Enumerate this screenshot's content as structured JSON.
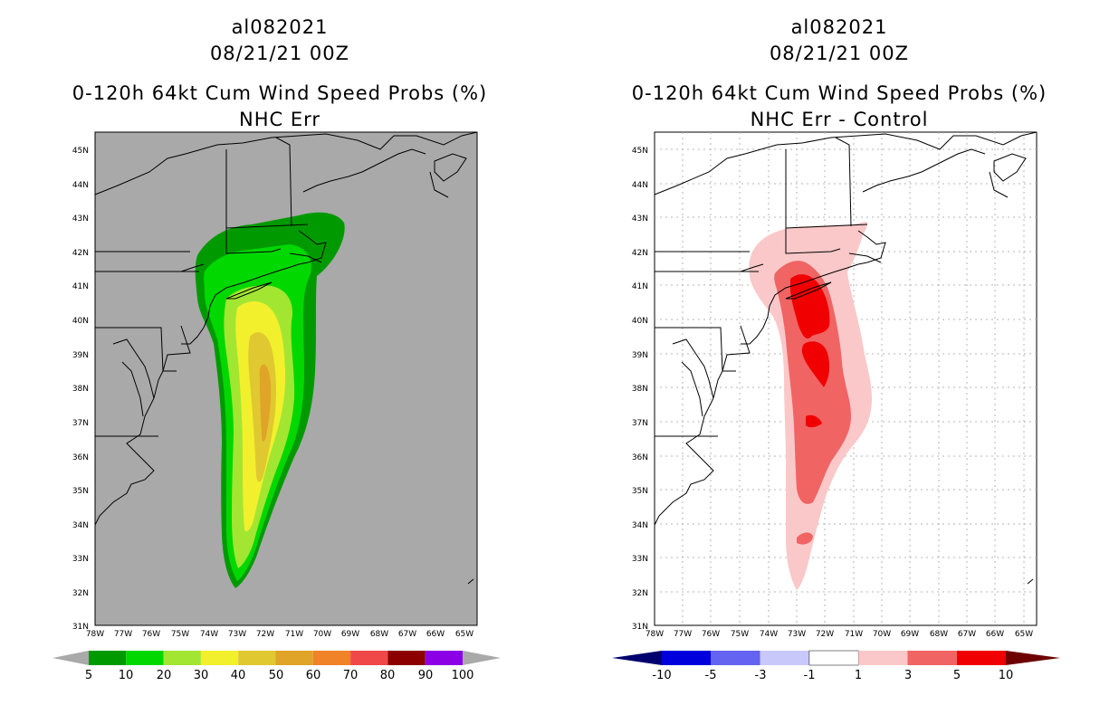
{
  "panels": [
    {
      "storm_id": "al082021",
      "datetime": "08/21/21 00Z",
      "product": "0-120h 64kt Cum Wind Speed Probs (%)",
      "subtitle": "NHC Err",
      "lat_labels": [
        "45N",
        "44N",
        "43N",
        "42N",
        "41N",
        "40N",
        "39N",
        "38N",
        "37N",
        "36N",
        "35N",
        "34N",
        "33N",
        "32N",
        "31N"
      ],
      "lon_labels": [
        "78W",
        "77W",
        "76W",
        "75W",
        "74W",
        "73W",
        "72W",
        "71W",
        "70W",
        "69W",
        "68W",
        "67W",
        "66W",
        "65W"
      ],
      "colorbar_labels": [
        "5",
        "10",
        "20",
        "30",
        "40",
        "50",
        "60",
        "70",
        "80",
        "90",
        "100"
      ],
      "colorbar_colors": [
        "#009a00",
        "#00d800",
        "#a2e632",
        "#f2f02c",
        "#e0c830",
        "#e0a428",
        "#f08228",
        "#f04848",
        "#8c0000",
        "#8c00e6"
      ],
      "background": "#a9a9a9"
    },
    {
      "storm_id": "al082021",
      "datetime": "08/21/21 00Z",
      "product": "0-120h 64kt Cum Wind Speed Probs (%)",
      "subtitle": "NHC Err - Control",
      "lat_labels": [
        "45N",
        "44N",
        "43N",
        "42N",
        "41N",
        "40N",
        "39N",
        "38N",
        "37N",
        "36N",
        "35N",
        "34N",
        "33N",
        "32N",
        "31N"
      ],
      "lon_labels": [
        "78W",
        "77W",
        "76W",
        "75W",
        "74W",
        "73W",
        "72W",
        "71W",
        "70W",
        "69W",
        "68W",
        "67W",
        "66W",
        "65W"
      ],
      "colorbar_labels": [
        "-10",
        "-5",
        "-3",
        "-1",
        "1",
        "3",
        "5",
        "10"
      ],
      "colorbar_colors": [
        "#0000dc",
        "#6464f0",
        "#c8c8fa",
        "#ffffff",
        "#fac8c8",
        "#f06464",
        "#f00000"
      ],
      "background": "#ffffff"
    }
  ]
}
